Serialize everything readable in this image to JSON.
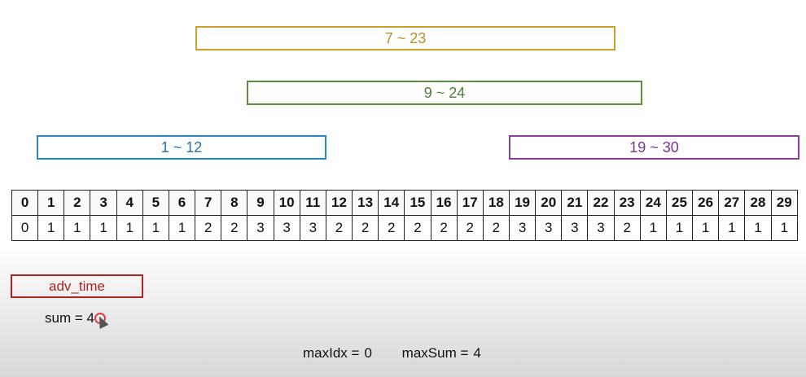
{
  "ranges": [
    {
      "id": "range-yellow",
      "label": "7 ~ 23",
      "color": "#c9a227"
    },
    {
      "id": "range-green",
      "label": "9 ~ 24",
      "color": "#5a8f3c"
    },
    {
      "id": "range-blue",
      "label": "1 ~ 12",
      "color": "#2a86c8"
    },
    {
      "id": "range-purple",
      "label": "19 ~ 30",
      "color": "#8a3f9e"
    }
  ],
  "table": {
    "indices": [
      "0",
      "1",
      "2",
      "3",
      "4",
      "5",
      "6",
      "7",
      "8",
      "9",
      "10",
      "11",
      "12",
      "13",
      "14",
      "15",
      "16",
      "17",
      "18",
      "19",
      "20",
      "21",
      "22",
      "23",
      "24",
      "25",
      "26",
      "27",
      "28",
      "29"
    ],
    "values": [
      "0",
      "1",
      "1",
      "1",
      "1",
      "1",
      "1",
      "2",
      "2",
      "3",
      "3",
      "3",
      "2",
      "2",
      "2",
      "2",
      "2",
      "2",
      "2",
      "3",
      "3",
      "3",
      "3",
      "2",
      "1",
      "1",
      "1",
      "1",
      "1",
      "1"
    ]
  },
  "function_label": "adv_time",
  "sum": {
    "label": "sum =",
    "value": "4"
  },
  "status": {
    "maxIdx_label": "maxIdx =",
    "maxIdx_value": "0",
    "maxSum_label": "maxSum =",
    "maxSum_value": "4"
  }
}
